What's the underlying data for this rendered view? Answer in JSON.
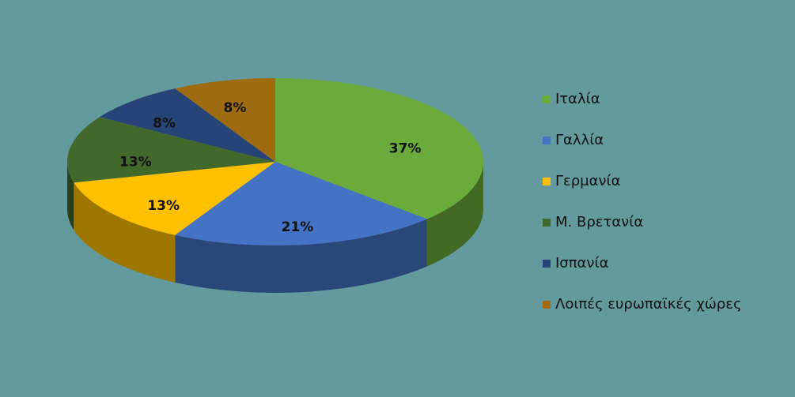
{
  "chart_data": {
    "type": "pie",
    "categories": [
      "Ιταλία",
      "Γαλλία",
      "Γερμανία",
      "Μ. Βρετανία",
      "Ισπανία",
      "Λοιπές ευρωπαϊκές χώρες"
    ],
    "values": [
      37,
      21,
      13,
      13,
      8,
      8
    ],
    "value_labels": [
      "37%",
      "21%",
      "13%",
      "13%",
      "8%",
      "8%"
    ],
    "colors": [
      "#6aab3b",
      "#4472c4",
      "#ffc000",
      "#43682b",
      "#264478",
      "#9e6b10"
    ],
    "legend": "right"
  }
}
